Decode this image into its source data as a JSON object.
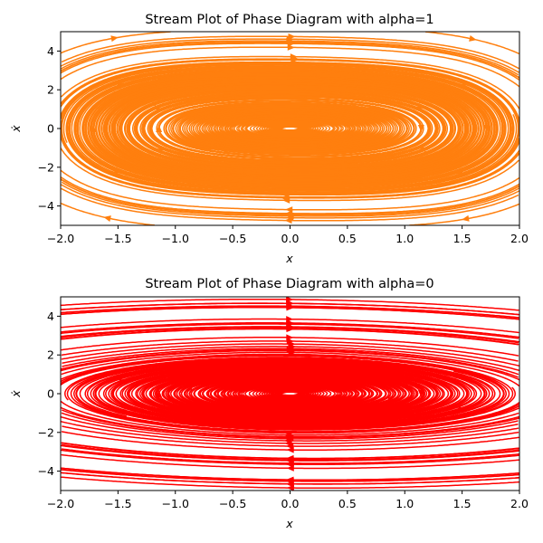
{
  "chart_data": [
    {
      "type": "streamplot",
      "title": "Stream Plot of Phase Diagram with alpha=1",
      "xlabel": "x",
      "ylabel": "ẋ",
      "xlim": [
        -2,
        2
      ],
      "ylim": [
        -5,
        5
      ],
      "xticks": [
        -2.0,
        -1.5,
        -1.0,
        -0.5,
        0.0,
        0.5,
        1.0,
        1.5,
        2.0
      ],
      "xtick_labels": [
        "−2.0",
        "−1.5",
        "−1.0",
        "−0.5",
        "0.0",
        "0.5",
        "1.0",
        "1.5",
        "2.0"
      ],
      "yticks": [
        -4,
        -2,
        0,
        2,
        4
      ],
      "ytick_labels": [
        "−4",
        "−2",
        "0",
        "2",
        "4"
      ],
      "alpha": 1,
      "color": "#ff7f0e",
      "grid": false
    },
    {
      "type": "streamplot",
      "title": "Stream Plot of Phase Diagram with alpha=0",
      "xlabel": "x",
      "ylabel": "ẋ",
      "xlim": [
        -2,
        2
      ],
      "ylim": [
        -5,
        5
      ],
      "xticks": [
        -2.0,
        -1.5,
        -1.0,
        -0.5,
        0.0,
        0.5,
        1.0,
        1.5,
        2.0
      ],
      "xtick_labels": [
        "−2.0",
        "−1.5",
        "−1.0",
        "−0.5",
        "0.0",
        "0.5",
        "1.0",
        "1.5",
        "2.0"
      ],
      "yticks": [
        -4,
        -2,
        0,
        2,
        4
      ],
      "ytick_labels": [
        "−4",
        "−2",
        "0",
        "2",
        "4"
      ],
      "alpha": 0,
      "color": "#ff0000",
      "grid": false
    }
  ]
}
